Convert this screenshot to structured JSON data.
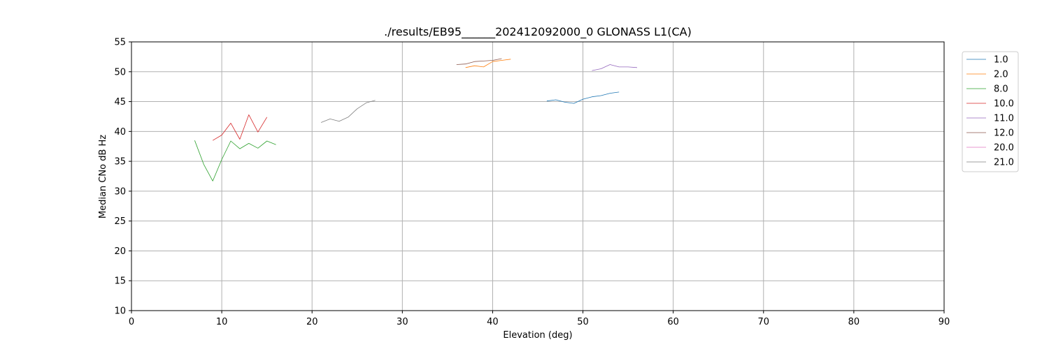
{
  "chart_data": {
    "type": "line",
    "title": "./results/EB95______202412092000_0 GLONASS L1(CA)",
    "xlabel": "Elevation (deg)",
    "ylabel": "Median CNo dB Hz",
    "xlim": [
      0,
      90
    ],
    "ylim": [
      10,
      55
    ],
    "xticks": [
      0,
      10,
      20,
      30,
      40,
      50,
      60,
      70,
      80,
      90
    ],
    "yticks": [
      10,
      15,
      20,
      25,
      30,
      35,
      40,
      45,
      50,
      55
    ],
    "grid": true,
    "legend_position": "right",
    "series": [
      {
        "name": "1.0",
        "color": "#1f77b4",
        "x": [
          46,
          47,
          48,
          49,
          50,
          51,
          52,
          53,
          54
        ],
        "y": [
          45.1,
          45.3,
          44.9,
          44.7,
          45.4,
          45.8,
          46.0,
          46.4,
          46.6
        ]
      },
      {
        "name": "2.0",
        "color": "#ff7f0e",
        "x": [
          37,
          38,
          39,
          40,
          41,
          42
        ],
        "y": [
          50.7,
          51.0,
          50.8,
          51.7,
          51.9,
          52.1
        ]
      },
      {
        "name": "8.0",
        "color": "#2ca02c",
        "x": [
          7,
          8,
          9,
          10,
          11,
          12,
          13,
          14,
          15,
          16
        ],
        "y": [
          38.5,
          34.5,
          31.7,
          35.3,
          38.4,
          37.1,
          38.0,
          37.2,
          38.4,
          37.8
        ]
      },
      {
        "name": "10.0",
        "color": "#d62728",
        "x": [
          9,
          10,
          11,
          12,
          13,
          14,
          15
        ],
        "y": [
          38.5,
          39.4,
          41.4,
          38.7,
          42.8,
          39.9,
          42.4
        ]
      },
      {
        "name": "11.0",
        "color": "#9467bd",
        "x": [
          51,
          52,
          53,
          54,
          55,
          56
        ],
        "y": [
          50.2,
          50.5,
          51.2,
          50.8,
          50.8,
          50.7
        ]
      },
      {
        "name": "12.0",
        "color": "#8c564b",
        "x": [
          36,
          37,
          38,
          39,
          40,
          41
        ],
        "y": [
          51.2,
          51.3,
          51.7,
          51.8,
          51.9,
          52.2
        ]
      },
      {
        "name": "20.0",
        "color": "#e377c2",
        "x": [],
        "y": []
      },
      {
        "name": "21.0",
        "color": "#7f7f7f",
        "x": [
          21,
          22,
          23,
          24,
          25,
          26,
          27
        ],
        "y": [
          41.5,
          42.1,
          41.7,
          42.4,
          43.8,
          44.8,
          45.2
        ]
      }
    ]
  }
}
